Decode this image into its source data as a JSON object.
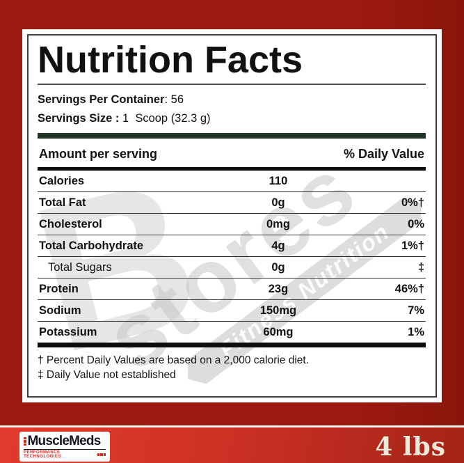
{
  "panel": {
    "title": "Nutrition Facts",
    "servings": [
      {
        "label": "Servings Per Container",
        "value": ": 56"
      },
      {
        "label": "Servings Size :",
        "value": " 1  Scoop (32.3 g)"
      }
    ],
    "header": {
      "amount": "Amount per serving",
      "daily_value": "% Daily Value"
    },
    "rows": [
      {
        "name": "Calories",
        "amount": "110",
        "dv": "",
        "bold": true,
        "indent": false
      },
      {
        "name": "Total Fat",
        "amount": "0g",
        "dv": "0%†",
        "bold": true,
        "indent": false
      },
      {
        "name": "Cholesterol",
        "amount": "0mg",
        "dv": "0%",
        "bold": true,
        "indent": false
      },
      {
        "name": "Total Carbohydrate",
        "amount": "4g",
        "dv": "1%†",
        "bold": true,
        "indent": false
      },
      {
        "name": "Total Sugars",
        "amount": "0g",
        "dv": "‡",
        "bold": false,
        "indent": true
      },
      {
        "name": "Protein",
        "amount": "23g",
        "dv": "46%†",
        "bold": true,
        "indent": false
      },
      {
        "name": "Sodium",
        "amount": "150mg",
        "dv": "7%",
        "bold": true,
        "indent": false
      },
      {
        "name": "Potassium",
        "amount": "60mg",
        "dv": "1%",
        "bold": true,
        "indent": false
      }
    ],
    "footnotes": [
      "† Percent Daily Values are based on a 2,000 calorie diet.",
      "‡ Daily Value not established"
    ]
  },
  "watermark": {
    "letter": "B",
    "word": "stores",
    "ribbon": "Fitness Nutrition"
  },
  "footer": {
    "brand": "MuscleMeds",
    "brand_sub": "PERFORMANCE TECHNOLOGIES",
    "weight": "4 lbs"
  },
  "colors": {
    "background_red_top": "#9b190f",
    "background_red_bottom": "#cf3225",
    "divider_green": "#203627",
    "divider_black": "#0d0d0d",
    "brand_red": "#d7281d",
    "weight_cream": "#efe9da",
    "watermark_gray": "#c9c9c9"
  }
}
